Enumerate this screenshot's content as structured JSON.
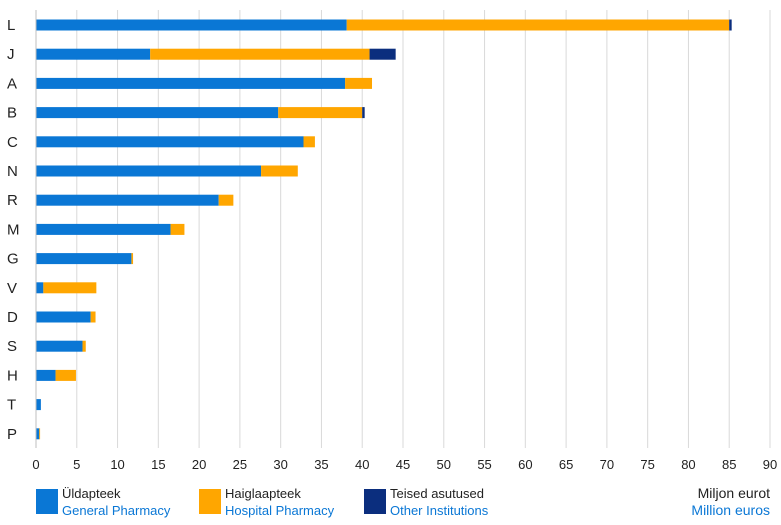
{
  "chart_data": {
    "type": "bar",
    "orientation": "horizontal",
    "stacked": true,
    "categories": [
      "L",
      "J",
      "A",
      "B",
      "C",
      "N",
      "R",
      "M",
      "G",
      "V",
      "D",
      "S",
      "H",
      "T",
      "P"
    ],
    "series": [
      {
        "name": "Üldapteek",
        "name_en": "General Pharmacy",
        "color": "#0a77d5",
        "values": [
          38.1,
          14.0,
          37.9,
          29.7,
          32.8,
          27.6,
          22.4,
          16.5,
          11.7,
          0.9,
          6.7,
          5.7,
          2.4,
          0.6,
          0.4
        ]
      },
      {
        "name": "Haiglaapteek",
        "name_en": "Hospital Pharmacy",
        "color": "#ffa600",
        "values": [
          46.9,
          26.9,
          3.3,
          10.3,
          1.4,
          4.5,
          1.8,
          1.7,
          0.2,
          6.5,
          0.6,
          0.4,
          2.5,
          0.0,
          0.1
        ]
      },
      {
        "name": "Teised asutused",
        "name_en": "Other Institutions",
        "color": "#0b2e7e",
        "values": [
          0.3,
          3.2,
          0.0,
          0.3,
          0.0,
          0.0,
          0.0,
          0.0,
          0.0,
          0.0,
          0.0,
          0.0,
          0.0,
          0.0,
          0.0
        ]
      }
    ],
    "xlim": [
      0,
      90
    ],
    "xticks": [
      "0",
      "5",
      "10",
      "15",
      "20",
      "25",
      "30",
      "35",
      "40",
      "45",
      "50",
      "55",
      "60",
      "65",
      "70",
      "75",
      "80",
      "85",
      "90"
    ],
    "xlabel": "Miljon eurot",
    "xlabel_en": "Million euros",
    "grid": "vertical",
    "legend_position": "bottom"
  },
  "colors": {
    "axis": "#bfbfbf",
    "grid": "#d9d9d9",
    "text": "#222222",
    "english_text": "#0a77d5"
  }
}
